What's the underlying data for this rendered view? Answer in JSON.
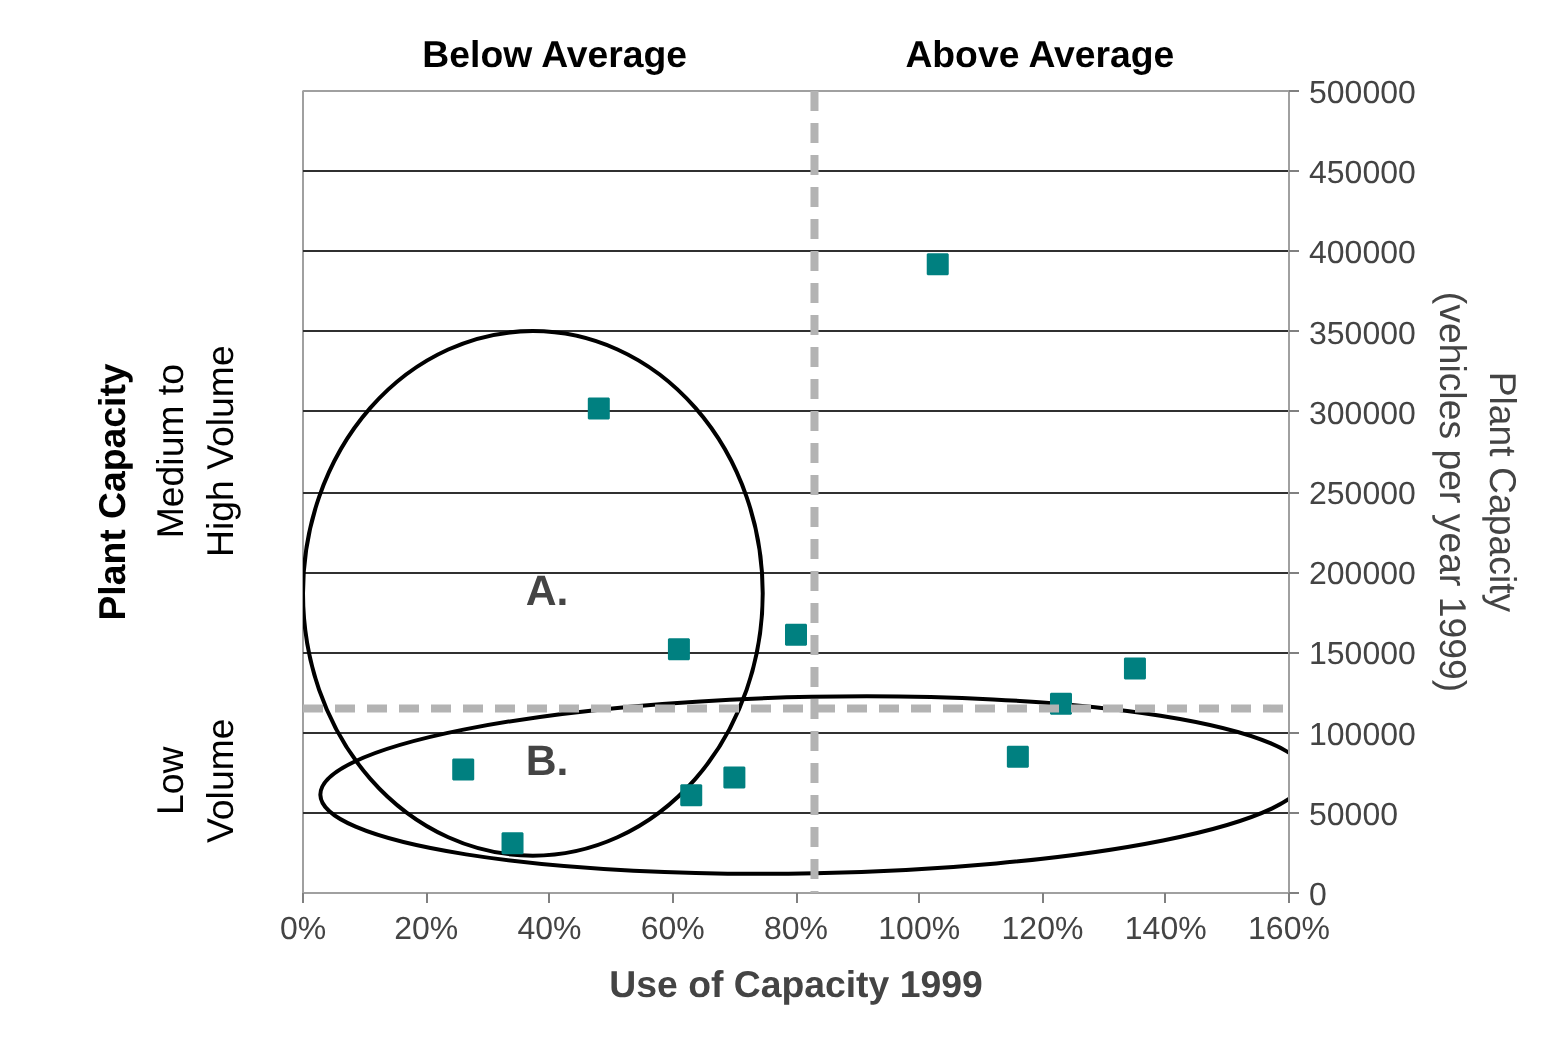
{
  "chart_data": {
    "type": "scatter",
    "xlabel": "Use of Capacity 1999",
    "ylabel": "Plant Capacity\n(vehicles per year 1999)",
    "x": [
      103,
      48,
      61,
      80,
      123,
      135,
      116,
      26,
      63,
      70,
      34
    ],
    "values": [
      392000,
      302000,
      152000,
      161000,
      118000,
      140000,
      85000,
      77000,
      61000,
      72000,
      31000
    ],
    "color": "#008080",
    "marker": "square",
    "xlim": [
      0,
      160
    ],
    "xticks": [
      {
        "value": 0,
        "label": "0%"
      },
      {
        "value": 20,
        "label": "20%"
      },
      {
        "value": 40,
        "label": "40%"
      },
      {
        "value": 60,
        "label": "60%"
      },
      {
        "value": 80,
        "label": "80%"
      },
      {
        "value": 100,
        "label": "100%"
      },
      {
        "value": 120,
        "label": "120%"
      },
      {
        "value": 140,
        "label": "140%"
      },
      {
        "value": 160,
        "label": "160%"
      }
    ],
    "ylim": [
      0,
      500000
    ],
    "yticks": [
      0,
      50000,
      100000,
      150000,
      200000,
      250000,
      300000,
      350000,
      400000,
      450000,
      500000
    ],
    "grid": "y",
    "ref_lines": [
      {
        "axis": "x",
        "value": 83,
        "color": "#b3b3b3",
        "line_style": "dashed"
      },
      {
        "axis": "y",
        "value": 115000,
        "color": "#b3b3b3",
        "line_style": "dashed"
      }
    ],
    "annotations": [
      "Below Average",
      "Above Average",
      "Plant Capacity",
      "Medium to\nHigh Volume",
      "Low\nVolume",
      "A.",
      "B."
    ]
  }
}
